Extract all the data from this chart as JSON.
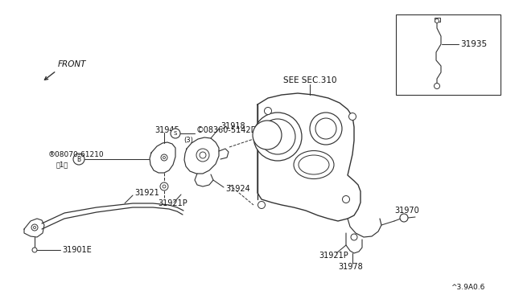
{
  "bg_color": "#ffffff",
  "line_color": "#333333",
  "text_color": "#111111",
  "labels": {
    "front": "FRONT",
    "see_sec": "SEE SEC.310",
    "ref_code": "^3.9A0.6",
    "p31945": "31945",
    "p31918": "31918",
    "p08360": "©08360-5142D",
    "p08360_sub": "(3)",
    "p08070": "®08070-61210",
    "p08070_sub": "（1）",
    "p31921P_L": "31921P",
    "p31924": "31924",
    "p31921": "31921",
    "p31901E": "31901E",
    "p31921P_R": "31921P",
    "p31970": "31970",
    "p31978": "31978",
    "p31935": "31935"
  }
}
